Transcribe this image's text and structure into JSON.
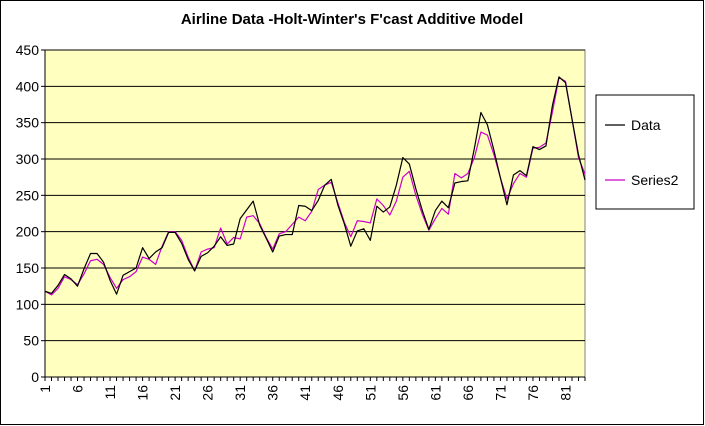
{
  "chart_data": {
    "type": "line",
    "title": "Airline Data -Holt-Winter's F'cast Additive Model",
    "xlabel": "",
    "ylabel": "",
    "ylim": [
      0,
      450
    ],
    "yticks": [
      0,
      50,
      100,
      150,
      200,
      250,
      300,
      350,
      400,
      450
    ],
    "xticks": [
      1,
      6,
      11,
      16,
      21,
      26,
      31,
      36,
      41,
      46,
      51,
      56,
      61,
      66,
      71,
      76,
      81
    ],
    "x_count": 84,
    "grid": "horizontal",
    "legend_position": "right",
    "plot_background": "#ffffc0",
    "series": [
      {
        "name": "Data",
        "color": "#000000",
        "values": [
          118,
          115,
          126,
          141,
          135,
          125,
          149,
          170,
          170,
          158,
          133,
          114,
          140,
          145,
          150,
          178,
          163,
          172,
          178,
          199,
          199,
          184,
          162,
          146,
          166,
          171,
          180,
          193,
          181,
          183,
          218,
          230,
          242,
          209,
          191,
          172,
          194,
          196,
          196,
          236,
          235,
          229,
          243,
          264,
          272,
          237,
          211,
          180,
          201,
          204,
          188,
          235,
          227,
          234,
          264,
          302,
          293,
          259,
          229,
          203,
          229,
          242,
          233,
          267,
          269,
          270,
          315,
          364,
          347,
          312,
          274,
          237,
          278,
          284,
          277,
          317,
          313,
          318,
          374,
          413,
          405,
          355,
          306,
          271
        ]
      },
      {
        "name": "Series2",
        "color": "#cc00cc",
        "values": [
          118,
          113,
          122,
          138,
          134,
          127,
          142,
          160,
          162,
          155,
          137,
          122,
          134,
          138,
          145,
          165,
          162,
          155,
          180,
          200,
          200,
          188,
          165,
          146,
          172,
          176,
          178,
          205,
          183,
          192,
          190,
          220,
          222,
          211,
          192,
          176,
          197,
          200,
          210,
          220,
          215,
          228,
          258,
          264,
          268,
          240,
          213,
          193,
          215,
          214,
          212,
          245,
          236,
          223,
          242,
          275,
          283,
          250,
          224,
          202,
          218,
          232,
          224,
          280,
          274,
          280,
          302,
          337,
          333,
          306,
          274,
          245,
          266,
          280,
          275,
          315,
          316,
          322,
          365,
          412,
          407,
          355,
          302,
          279
        ]
      }
    ]
  }
}
